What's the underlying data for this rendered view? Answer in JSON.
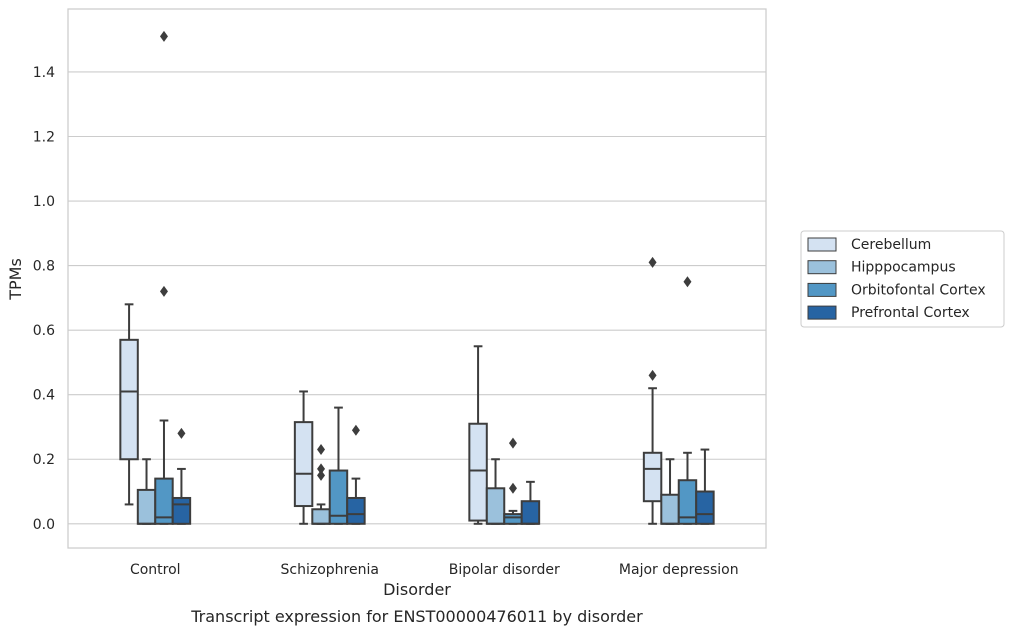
{
  "chart_data": {
    "type": "box",
    "title": "Transcript expression for ENST00000476011 by disorder",
    "xlabel": "Disorder",
    "ylabel": "TPMs",
    "ylim": [
      -0.075,
      1.595
    ],
    "yticks": [
      "0.0",
      "0.2",
      "0.4",
      "0.6",
      "0.8",
      "1.0",
      "1.2",
      "1.4"
    ],
    "grid": true,
    "legend_position": "right",
    "categories": [
      "Control",
      "Schizophrenia",
      "Bipolar disorder",
      "Major depression"
    ],
    "series": [
      {
        "name": "Cerebellum",
        "color": "#d4e2f2",
        "boxes": [
          {
            "whisker_low": 0.06,
            "q1": 0.2,
            "median": 0.41,
            "q3": 0.57,
            "whisker_high": 0.68,
            "outliers": []
          },
          {
            "whisker_low": 0.0,
            "q1": 0.055,
            "median": 0.155,
            "q3": 0.315,
            "whisker_high": 0.41,
            "outliers": []
          },
          {
            "whisker_low": 0.0,
            "q1": 0.01,
            "median": 0.165,
            "q3": 0.31,
            "whisker_high": 0.55,
            "outliers": []
          },
          {
            "whisker_low": 0.0,
            "q1": 0.07,
            "median": 0.17,
            "q3": 0.22,
            "whisker_high": 0.42,
            "outliers": [
              0.46,
              0.81
            ]
          }
        ]
      },
      {
        "name": "Hipppocampus",
        "color": "#9bc1dc",
        "boxes": [
          {
            "whisker_low": 0.0,
            "q1": 0.0,
            "median": 0.0,
            "q3": 0.105,
            "whisker_high": 0.2,
            "outliers": []
          },
          {
            "whisker_low": 0.0,
            "q1": 0.0,
            "median": 0.0,
            "q3": 0.045,
            "whisker_high": 0.06,
            "outliers": [
              0.15,
              0.17,
              0.23
            ]
          },
          {
            "whisker_low": 0.0,
            "q1": 0.0,
            "median": 0.0,
            "q3": 0.11,
            "whisker_high": 0.2,
            "outliers": []
          },
          {
            "whisker_low": 0.0,
            "q1": 0.0,
            "median": 0.0,
            "q3": 0.09,
            "whisker_high": 0.2,
            "outliers": []
          }
        ]
      },
      {
        "name": "Orbitofontal Cortex",
        "color": "#5297c5",
        "boxes": [
          {
            "whisker_low": 0.0,
            "q1": 0.0,
            "median": 0.02,
            "q3": 0.14,
            "whisker_high": 0.32,
            "outliers": [
              0.72,
              1.51
            ]
          },
          {
            "whisker_low": 0.0,
            "q1": 0.0,
            "median": 0.025,
            "q3": 0.165,
            "whisker_high": 0.36,
            "outliers": []
          },
          {
            "whisker_low": 0.0,
            "q1": 0.0,
            "median": 0.02,
            "q3": 0.03,
            "whisker_high": 0.04,
            "outliers": [
              0.11,
              0.25
            ]
          },
          {
            "whisker_low": 0.0,
            "q1": 0.0,
            "median": 0.02,
            "q3": 0.135,
            "whisker_high": 0.22,
            "outliers": [
              0.75
            ]
          }
        ]
      },
      {
        "name": "Prefrontal Cortex",
        "color": "#2764a3",
        "boxes": [
          {
            "whisker_low": 0.0,
            "q1": 0.0,
            "median": 0.06,
            "q3": 0.08,
            "whisker_high": 0.17,
            "outliers": [
              0.28
            ]
          },
          {
            "whisker_low": 0.0,
            "q1": 0.0,
            "median": 0.03,
            "q3": 0.08,
            "whisker_high": 0.14,
            "outliers": [
              0.29
            ]
          },
          {
            "whisker_low": 0.0,
            "q1": 0.0,
            "median": 0.0,
            "q3": 0.07,
            "whisker_high": 0.13,
            "outliers": []
          },
          {
            "whisker_low": 0.0,
            "q1": 0.0,
            "median": 0.03,
            "q3": 0.1,
            "whisker_high": 0.23,
            "outliers": []
          }
        ]
      }
    ]
  }
}
